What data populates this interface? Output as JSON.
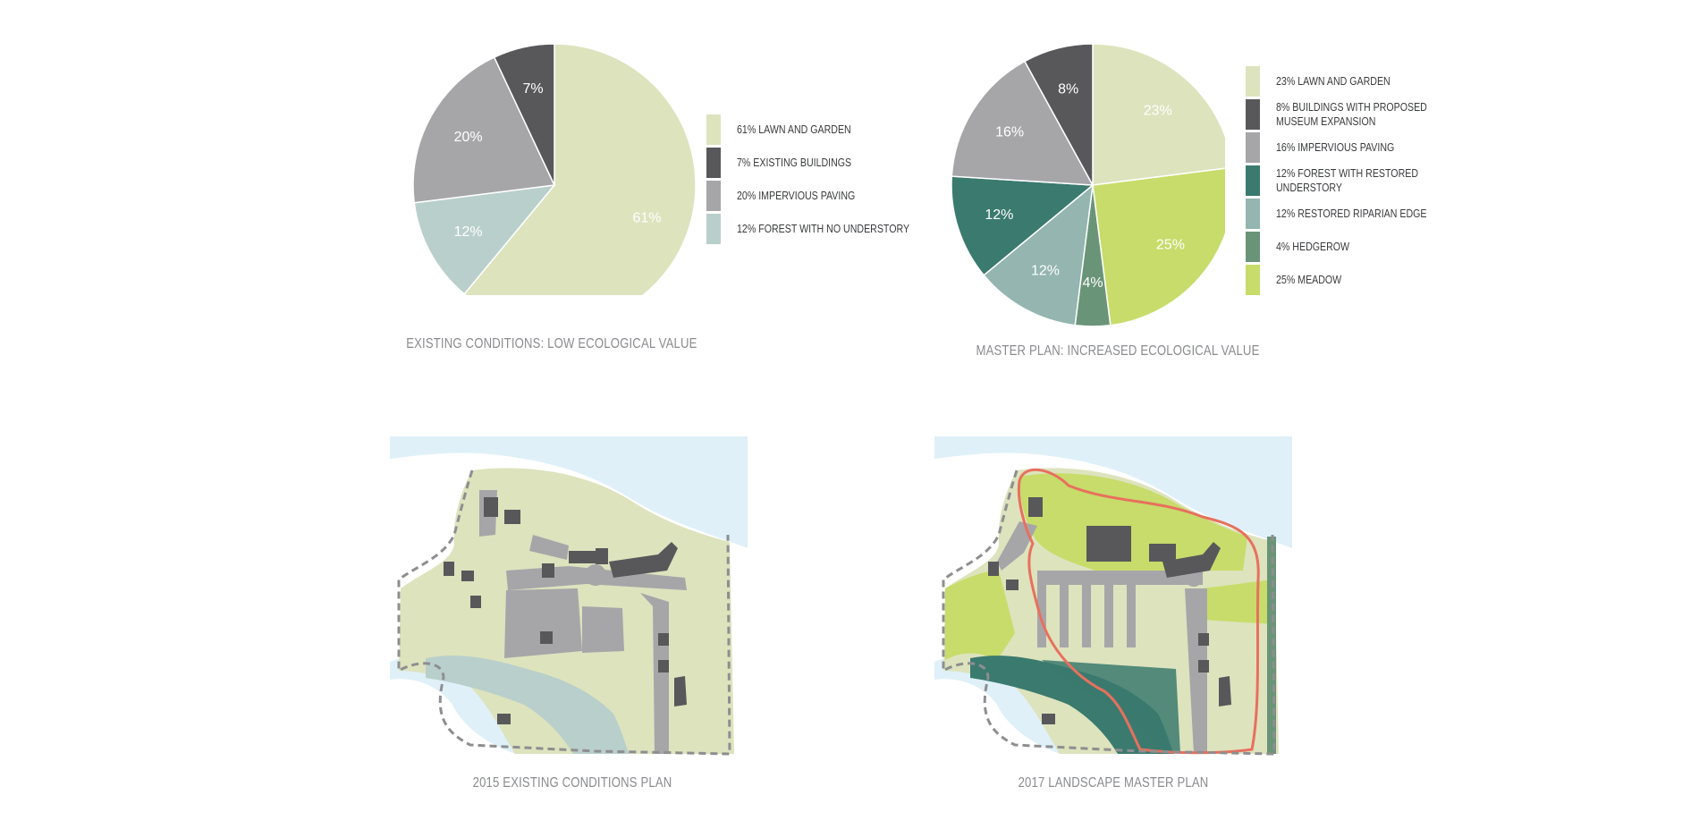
{
  "chart_data": [
    {
      "type": "pie",
      "title": "EXISTING CONDITIONS: LOW ECOLOGICAL VALUE",
      "slices": [
        {
          "label": "61% LAWN AND GARDEN",
          "value": 61,
          "display": "61%",
          "color": "#dde3bd"
        },
        {
          "label": "12% FOREST WITH NO UNDERSTORY",
          "value": 12,
          "display": "12%",
          "color": "#b9cfcb"
        },
        {
          "label": "20% IMPERVIOUS PAVING",
          "value": 20,
          "display": "20%",
          "color": "#a6a6a9"
        },
        {
          "label": "7% EXISTING BUILDINGS",
          "value": 7,
          "display": "7%",
          "color": "#58585b"
        }
      ],
      "legend": [
        {
          "label": "61% LAWN AND GARDEN",
          "color": "#dde3bd"
        },
        {
          "label": "7% EXISTING BUILDINGS",
          "color": "#58585b"
        },
        {
          "label": "20% IMPERVIOUS PAVING",
          "color": "#a6a6a9"
        },
        {
          "label": "12% FOREST WITH NO UNDERSTORY",
          "color": "#b9cfcb"
        }
      ]
    },
    {
      "type": "pie",
      "title": "MASTER PLAN: INCREASED ECOLOGICAL VALUE",
      "slices": [
        {
          "label": "23% LAWN AND GARDEN",
          "value": 23,
          "display": "23%",
          "color": "#dde3bd"
        },
        {
          "label": "25% MEADOW",
          "value": 25,
          "display": "25%",
          "color": "#c7dc6a"
        },
        {
          "label": "4% HEDGEROW",
          "value": 4,
          "display": "4%",
          "color": "#6a9478"
        },
        {
          "label": "12% RESTORED RIPARIAN EDGE",
          "value": 12,
          "display": "12%",
          "color": "#94b5b0"
        },
        {
          "label": "12% FOREST WITH RESTORED UNDERSTORY",
          "value": 12,
          "display": "12%",
          "color": "#3b7a6f"
        },
        {
          "label": "16% IMPERVIOUS PAVING",
          "value": 16,
          "display": "16%",
          "color": "#a6a6a9"
        },
        {
          "label": "8% BUILDINGS WITH PROPOSED MUSEUM EXPANSION",
          "value": 8,
          "display": "8%",
          "color": "#58585b"
        }
      ],
      "legend": [
        {
          "label": "23% LAWN AND GARDEN",
          "color": "#dde3bd"
        },
        {
          "label": "8% BUILDINGS WITH PROPOSED\nMUSEUM EXPANSION",
          "color": "#58585b"
        },
        {
          "label": "16% IMPERVIOUS PAVING",
          "color": "#a6a6a9"
        },
        {
          "label": "12% FOREST WITH RESTORED UNDERSTORY",
          "color": "#3b7a6f"
        },
        {
          "label": "12% RESTORED RIPARIAN EDGE",
          "color": "#94b5b0"
        },
        {
          "label": "4% HEDGEROW",
          "color": "#6a9478"
        },
        {
          "label": "25% MEADOW",
          "color": "#c7dc6a"
        }
      ]
    }
  ],
  "plans": {
    "existing": {
      "caption": "2015 EXISTING CONDITIONS PLAN"
    },
    "master": {
      "caption": "2017 LANDSCAPE MASTER PLAN"
    }
  },
  "colors": {
    "water": "#dff0f8",
    "lawn": "#dde3bd",
    "meadow": "#c7dc6a",
    "forest_restored": "#3b7a6f",
    "riparian_existing": "#b9cfcb",
    "paving": "#a6a6a9",
    "building": "#58585b",
    "trail": "#e8705e",
    "hedgerow": "#6a9478",
    "boundary": "#8e8e90"
  }
}
